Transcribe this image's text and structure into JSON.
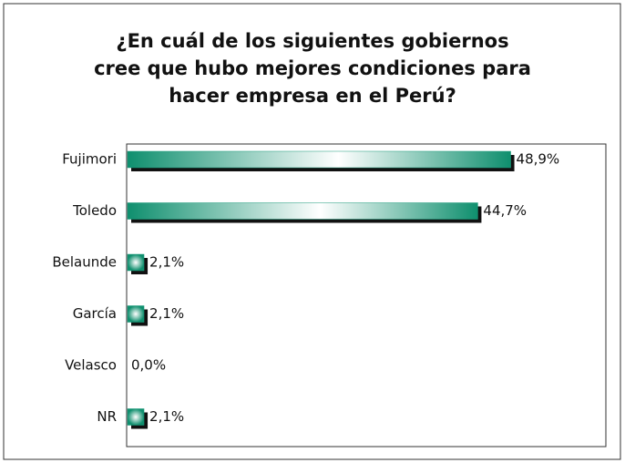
{
  "chart_data": {
    "type": "bar",
    "orientation": "horizontal",
    "title": "¿En cuál de los siguientes gobiernos cree que hubo mejores condiciones para hacer empresa en el Perú?",
    "categories": [
      "Fujimori",
      "Toledo",
      "Belaunde",
      "García",
      "Velasco",
      "NR"
    ],
    "values": [
      48.9,
      44.7,
      2.1,
      2.1,
      0.0,
      2.1
    ],
    "value_labels": [
      "48,9%",
      "44,7%",
      "2,1%",
      "2,1%",
      "0,0%",
      "2,1%"
    ],
    "color": "#1a9a7a"
  }
}
